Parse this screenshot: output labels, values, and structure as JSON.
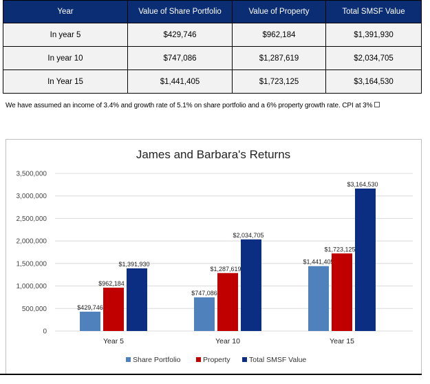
{
  "table": {
    "headers": [
      "Year",
      "Value of Share Portfolio",
      "Value of Property",
      "Total SMSF Value"
    ],
    "rows": [
      [
        "In year 5",
        "$429,746",
        "$962,184",
        "$1,391,930"
      ],
      [
        "In year 10",
        "$747,086",
        "$1,287,619",
        "$2,034,705"
      ],
      [
        "In Year 15",
        "$1,441,405",
        "$1,723,125",
        "$3,164,530"
      ]
    ]
  },
  "note": "We have assumed an income of 3.4% and growth rate of 5.1% on share portfolio and a 6% property growth rate. CPI at 3%",
  "chart_data": {
    "type": "bar",
    "title": "James and Barbara's Returns",
    "categories": [
      "Year 5",
      "Year 10",
      "Year 15"
    ],
    "series": [
      {
        "name": "Share Portfolio",
        "color": "#4f81bd",
        "values": [
          429746,
          747086,
          1441405
        ],
        "labels": [
          "$429,746",
          "$747,086",
          "$1,441,405"
        ]
      },
      {
        "name": "Property",
        "color": "#c00000",
        "values": [
          962184,
          1287619,
          1723125
        ],
        "labels": [
          "$962,184",
          "$1,287,619",
          "$1,723,125"
        ]
      },
      {
        "name": "Total SMSF Value",
        "color": "#0b2d82",
        "values": [
          1391930,
          2034705,
          3164530
        ],
        "labels": [
          "$1,391,930",
          "$2,034,705",
          "$3,164,530"
        ]
      }
    ],
    "ylim": [
      0,
      3500000
    ],
    "yticks": [
      0,
      500000,
      1000000,
      1500000,
      2000000,
      2500000,
      3000000,
      3500000
    ],
    "ytick_labels": [
      "0",
      "500,000",
      "1,000,000",
      "1,500,000",
      "2,000,000",
      "2,500,000",
      "3,000,000",
      "3,500,000"
    ],
    "grid": true,
    "legend": "bottom",
    "xlabel": "",
    "ylabel": ""
  }
}
